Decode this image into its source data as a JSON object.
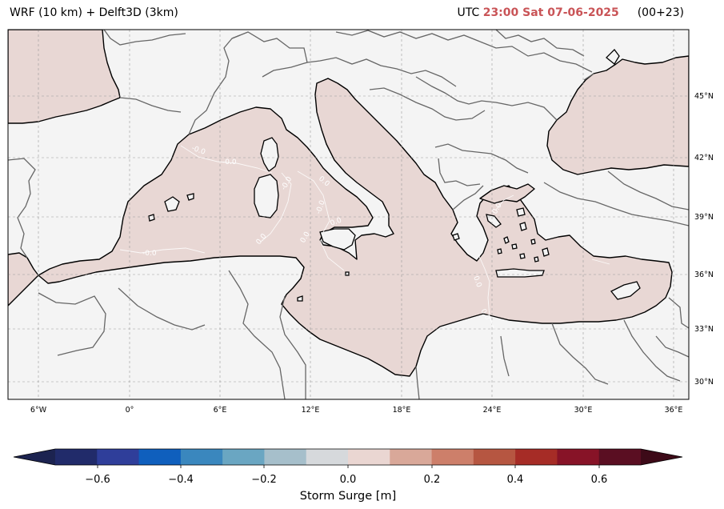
{
  "header": {
    "model": "WRF (10 km) + Delft3D (3km)",
    "utc_prefix": "UTC",
    "valid_time": "23:00 Sat 07-06-2025",
    "lead": "(00+23)",
    "highlight_color": "#c95457"
  },
  "map": {
    "sea_color": "#e8d7d4",
    "land_color": "#f4f4f4",
    "lat_labels": [
      "45°N",
      "42°N",
      "39°N",
      "36°N",
      "33°N",
      "30°N"
    ],
    "lon_labels": [
      "6°W",
      "0°",
      "6°E",
      "12°E",
      "18°E",
      "24°E",
      "30°E",
      "36°E"
    ],
    "contour_labels": [
      "-0.0",
      "-0.0",
      "-0.0",
      "0.0",
      "-0.0",
      "0.0",
      "0.0",
      "0.0",
      "-0.0",
      "0.0",
      "0.0",
      "0.0"
    ]
  },
  "colorbar": {
    "title": "Storm Surge [m]",
    "ticks": [
      "−0.6",
      "−0.4",
      "−0.2",
      "0.0",
      "0.2",
      "0.4",
      "0.6"
    ],
    "colors": [
      "#1c2350",
      "#212b6a",
      "#2f3e9a",
      "#0f5fbd",
      "#3a87be",
      "#6aa6c2",
      "#a6bfcb",
      "#d6d9dc",
      "#ead6d2",
      "#d9a899",
      "#cd7f6a",
      "#b65641",
      "#a62c26",
      "#871327",
      "#5a0e22",
      "#3d0a18"
    ]
  }
}
